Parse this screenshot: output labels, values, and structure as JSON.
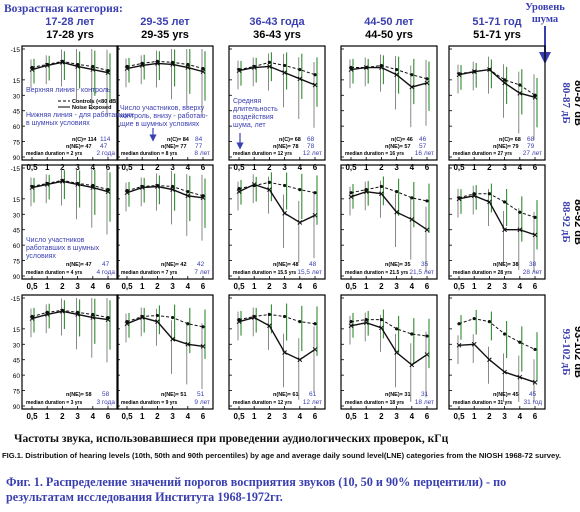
{
  "header": {
    "age_category_label": "Возрастная категория:",
    "noise_level_label_line1": "Уровень",
    "noise_level_label_line2": "шума"
  },
  "columns": [
    {
      "ru": "17-28 лет",
      "en": "17-28 yrs"
    },
    {
      "ru": "29-35 лет",
      "en": "29-35 yrs"
    },
    {
      "ru": "36-43 года",
      "en": "36-43 yrs"
    },
    {
      "ru": "44-50 лет",
      "en": "44-50 yrs"
    },
    {
      "ru": "51-71 год",
      "en": "51-71 yrs"
    }
  ],
  "rows": [
    {
      "ru": "80-87 дБ",
      "en": "80-87 dB"
    },
    {
      "ru": "88-92 дБ",
      "en": "88-92 dB"
    },
    {
      "ru": "93-102 дБ",
      "en": "93-102 dB"
    }
  ],
  "annotations": {
    "top_line": "Верхняя линия - контроль",
    "bottom_line": "Нижняя линия - для работающих в шумных условиях",
    "participants_top": "Число участников, вверху контроль, внизу - работаю- щие в шумных условиях",
    "duration": "Средняя длительность воздействия шума, лет",
    "participants_noisy": "Число участников работавших в шумных условиях"
  },
  "legend": {
    "control": "Controls (<80 dB)",
    "noise": "Noise Exposed"
  },
  "captions": {
    "x_axis": "Частоты звука, использовавшиеся при проведении аудиологических проверок, кГц",
    "english": "FIG.1. Distribution of hearing levels (10th, 50th and 90th percentiles) by age and average daily sound level(LNE) categories from the NIOSH 1968-72 survey.",
    "russian": "Фиг. 1. Распределение значений порогов восприятия звуков (10, 50 и 90% перцентили) - по результатам исследования Института 1968-1972гг."
  },
  "chart_data": {
    "type": "line",
    "grid": "5 x 3 small multiples",
    "x_ticks": [
      "0,5",
      "1",
      "2",
      "3",
      "4",
      "6"
    ],
    "y_ticks": [
      "-15",
      "15",
      "30",
      "45",
      "60",
      "75",
      "90"
    ],
    "x_unit": "kHz",
    "y_unit": "dB hearing level",
    "ylim": [
      -15,
      90
    ],
    "y_direction": "inverted",
    "colors": {
      "control": "#2f8c2f",
      "noise": "#111111",
      "blue_text": "#3a3fb0"
    },
    "panels": [
      {
        "row": 0,
        "col": 0,
        "control": [
          3,
          0,
          -3,
          0,
          2,
          6
        ],
        "noise": [
          5,
          1,
          -2,
          2,
          5,
          8
        ],
        "n_label": "n(C)= 114",
        "n_label2": "n(NE)= 47",
        "n_blue": "114",
        "n_blue2": "47",
        "duration_label": "median duration = 2 yrs",
        "duration_ru": "2 года"
      },
      {
        "row": 0,
        "col": 1,
        "control": [
          2,
          -1,
          -3,
          -2,
          0,
          4
        ],
        "noise": [
          4,
          1,
          -1,
          0,
          3,
          7
        ],
        "n_label": "n(C)= 84",
        "n_label2": "n(NE)= 77",
        "n_blue": "84",
        "n_blue2": "77",
        "duration_label": "median duration = 8 yrs",
        "duration_ru": "8 лет"
      },
      {
        "row": 0,
        "col": 2,
        "control": [
          5,
          2,
          -2,
          1,
          5,
          10
        ],
        "noise": [
          6,
          3,
          2,
          8,
          14,
          20
        ],
        "n_label": "n(C)= 68",
        "n_label2": "n(NE)= 78",
        "n_blue": "68",
        "n_blue2": "78",
        "duration_label": "median duration = 12 yrs",
        "duration_ru": "12 лет"
      },
      {
        "row": 0,
        "col": 3,
        "control": [
          3,
          3,
          1,
          5,
          10,
          14
        ],
        "noise": [
          5,
          3,
          3,
          10,
          22,
          18
        ],
        "n_label": "n(C)= 46",
        "n_label2": "n(NE)= 57",
        "n_blue": "46",
        "n_blue2": "57",
        "duration_label": "median duration = 16 yrs",
        "duration_ru": "16 лет"
      },
      {
        "row": 0,
        "col": 4,
        "control": [
          9,
          7,
          5,
          15,
          20,
          30
        ],
        "noise": [
          10,
          7,
          5,
          18,
          28,
          32
        ],
        "n_label": "n(C)= 68",
        "n_label2": "n(NE)= 79",
        "n_blue": "68",
        "n_blue2": "79",
        "duration_label": "median duration = 27 yrs",
        "duration_ru": "27 лет"
      },
      {
        "row": 1,
        "col": 0,
        "control": [
          3,
          0,
          -3,
          0,
          2,
          6
        ],
        "noise": [
          4,
          1,
          -2,
          1,
          4,
          8
        ],
        "n_label": "n(NE)= 47",
        "n_blue": "47",
        "duration_label": "median duration = 4 yrs",
        "duration_ru": "4 года"
      },
      {
        "row": 1,
        "col": 1,
        "control": [
          7,
          3,
          2,
          3,
          8,
          12
        ],
        "noise": [
          9,
          4,
          3,
          6,
          12,
          14
        ],
        "n_label": "n(NE)= 42",
        "n_blue": "42",
        "duration_label": "median duration = 7 yrs",
        "duration_ru": "7 лет"
      },
      {
        "row": 1,
        "col": 2,
        "control": [
          5,
          2,
          -1,
          2,
          6,
          9
        ],
        "noise": [
          8,
          1,
          6,
          29,
          38,
          31
        ],
        "n_label": "n(NE)= 48",
        "n_blue": "48",
        "duration_label": "median duration = 15.5 yrs",
        "duration_ru": "15,5 лет"
      },
      {
        "row": 1,
        "col": 3,
        "control": [
          9,
          6,
          3,
          8,
          14,
          17
        ],
        "noise": [
          13,
          8,
          10,
          28,
          35,
          45
        ],
        "n_label": "n(NE)= 35",
        "n_blue": "35",
        "duration_label": "median duration = 21.5 yrs",
        "duration_ru": "21,5 лет"
      },
      {
        "row": 1,
        "col": 4,
        "control": [
          14,
          10,
          10,
          18,
          28,
          33
        ],
        "noise": [
          15,
          12,
          18,
          45,
          45,
          50
        ],
        "n_label": "n(NE)= 38",
        "n_blue": "38",
        "duration_label": "median duration = 28 yrs",
        "duration_ru": "28 лет"
      },
      {
        "row": 2,
        "col": 0,
        "control": [
          3,
          -1,
          -3,
          -1,
          1,
          4
        ],
        "noise": [
          5,
          1,
          -2,
          1,
          4,
          6
        ],
        "n_label": "n(NE)= 58",
        "n_blue": "58",
        "duration_label": "median duration = 3 yrs",
        "duration_ru": "3 года"
      },
      {
        "row": 2,
        "col": 1,
        "control": [
          8,
          3,
          2,
          4,
          10,
          13
        ],
        "noise": [
          10,
          4,
          8,
          25,
          30,
          32
        ],
        "n_label": "n(NE)= 51",
        "n_blue": "51",
        "duration_label": "median duration = 9 yrs",
        "duration_ru": "9 лет"
      },
      {
        "row": 2,
        "col": 2,
        "control": [
          6,
          3,
          1,
          3,
          8,
          10
        ],
        "noise": [
          8,
          4,
          12,
          38,
          45,
          35
        ],
        "n_label": "n(NE)= 61",
        "n_blue": "61",
        "duration_label": "median duration = 12 yrs",
        "duration_ru": "12 лет"
      },
      {
        "row": 2,
        "col": 3,
        "control": [
          8,
          6,
          6,
          15,
          20,
          22
        ],
        "noise": [
          12,
          9,
          14,
          38,
          50,
          40
        ],
        "n_label": "n(NE)= 31",
        "n_blue": "31",
        "duration_label": "median duration = 18 yrs",
        "duration_ru": "18 лет"
      },
      {
        "row": 2,
        "col": 4,
        "control": [
          10,
          5,
          8,
          20,
          28,
          35
        ],
        "noise": [
          31,
          30,
          45,
          57,
          62,
          67
        ],
        "n_label": "n(NE)= 45",
        "n_blue": "45",
        "duration_label": "median duration = 31 yrs",
        "duration_ru": "31 год"
      }
    ]
  }
}
